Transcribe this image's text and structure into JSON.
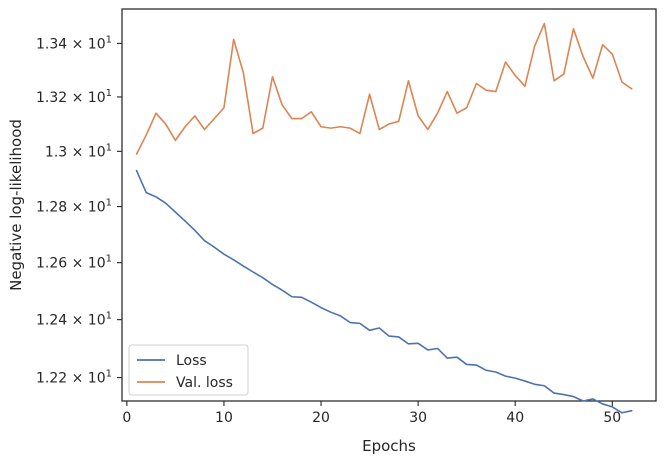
{
  "chart_data": {
    "type": "line",
    "title": "",
    "xlabel": "Epochs",
    "ylabel": "Negative log-likelihood",
    "xlim": [
      -0.5,
      54.5
    ],
    "ylim": [
      12.12,
      13.53
    ],
    "y_scale": "log",
    "grid": false,
    "legend_position": "lower-left",
    "x_ticks": [
      0,
      10,
      20,
      30,
      40,
      50
    ],
    "x_tick_labels": [
      "0",
      "10",
      "20",
      "30",
      "40",
      "50"
    ],
    "y_ticks": [
      12.2,
      12.4,
      12.6,
      12.8,
      13.0,
      13.2,
      13.4
    ],
    "y_tick_labels": [
      {
        "mantissa": "1.22",
        "sep": " × 10",
        "exp": "1"
      },
      {
        "mantissa": "1.24",
        "sep": " × 10",
        "exp": "1"
      },
      {
        "mantissa": "1.26",
        "sep": " × 10",
        "exp": "1"
      },
      {
        "mantissa": "1.28",
        "sep": " × 10",
        "exp": "1"
      },
      {
        "mantissa": "1.3",
        "sep": " × 10",
        "exp": "1"
      },
      {
        "mantissa": "1.32",
        "sep": " × 10",
        "exp": "1"
      },
      {
        "mantissa": "1.34",
        "sep": " × 10",
        "exp": "1"
      }
    ],
    "x": [
      1,
      2,
      3,
      4,
      5,
      6,
      7,
      8,
      9,
      10,
      11,
      12,
      13,
      14,
      15,
      16,
      17,
      18,
      19,
      20,
      21,
      22,
      23,
      24,
      25,
      26,
      27,
      28,
      29,
      30,
      31,
      32,
      33,
      34,
      35,
      36,
      37,
      38,
      39,
      40,
      41,
      42,
      43,
      44,
      45,
      46,
      47,
      48,
      49,
      50,
      51,
      52
    ],
    "series": [
      {
        "name": "Loss",
        "color": "#4c72b0",
        "values": [
          12.93,
          12.85,
          12.835,
          12.812,
          12.78,
          12.748,
          12.715,
          12.678,
          12.655,
          12.63,
          12.61,
          12.588,
          12.567,
          12.547,
          12.523,
          12.503,
          12.48,
          12.478,
          12.461,
          12.442,
          12.426,
          12.413,
          12.39,
          12.387,
          12.363,
          12.371,
          12.343,
          12.34,
          12.316,
          12.318,
          12.295,
          12.3,
          12.267,
          12.27,
          12.245,
          12.243,
          12.225,
          12.219,
          12.205,
          12.198,
          12.188,
          12.177,
          12.172,
          12.147,
          12.142,
          12.135,
          12.12,
          12.127,
          12.11,
          12.1,
          12.08,
          12.087
        ]
      },
      {
        "name": "Val. loss",
        "color": "#dd8452",
        "values": [
          12.99,
          13.06,
          13.14,
          13.1,
          13.04,
          13.09,
          13.13,
          13.08,
          13.12,
          13.16,
          13.415,
          13.29,
          13.065,
          13.085,
          13.275,
          13.17,
          13.12,
          13.12,
          13.145,
          13.09,
          13.085,
          13.09,
          13.085,
          13.065,
          13.21,
          13.08,
          13.1,
          13.11,
          13.26,
          13.13,
          13.08,
          13.14,
          13.22,
          13.14,
          13.16,
          13.25,
          13.225,
          13.22,
          13.33,
          13.28,
          13.24,
          13.39,
          13.475,
          13.26,
          13.285,
          13.455,
          13.35,
          13.27,
          13.395,
          13.36,
          13.255,
          13.23
        ]
      }
    ]
  }
}
